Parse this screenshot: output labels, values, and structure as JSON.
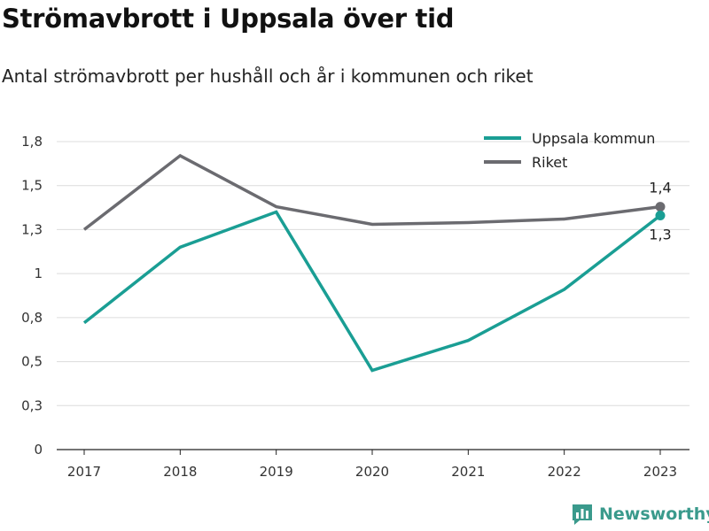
{
  "header": {
    "title": "Strömavbrott i Uppsala över tid",
    "subtitle": "Antal strömavbrott per hushåll och år i kommunen och riket"
  },
  "brand": {
    "name": "Newsworthy",
    "icon": "bar-chart-logo-icon",
    "color": "#3a9a8c"
  },
  "chart_data": {
    "type": "line",
    "title": "Strömavbrott i Uppsala över tid",
    "subtitle": "Antal strömavbrott per hushåll och år i kommunen och riket",
    "x": [
      "2017",
      "2018",
      "2019",
      "2020",
      "2021",
      "2022",
      "2023"
    ],
    "y_ticks": [
      "0",
      "0,3",
      "0,5",
      "0,8",
      "1",
      "1,3",
      "1,5",
      "1,8"
    ],
    "ylim": [
      0,
      1.75
    ],
    "grid": true,
    "legend_position": "top-right",
    "series": [
      {
        "name": "Uppsala kommun",
        "color": "#1a9e94",
        "values": [
          0.72,
          1.15,
          1.35,
          0.45,
          0.62,
          0.91,
          1.33
        ],
        "end_label": "1,3"
      },
      {
        "name": "Riket",
        "color": "#6b6b70",
        "values": [
          1.25,
          1.67,
          1.38,
          1.28,
          1.29,
          1.31,
          1.38
        ],
        "end_label": "1,4"
      }
    ]
  }
}
